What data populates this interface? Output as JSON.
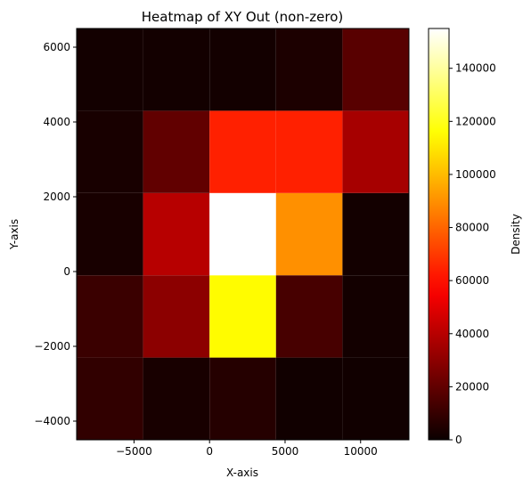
{
  "chart_data": {
    "type": "heatmap",
    "title": "Heatmap of XY Out (non-zero)",
    "xlabel": "X-axis",
    "ylabel": "Y-axis",
    "colorbar_label": "Density",
    "colormap": "hot",
    "xlim": [
      -8800,
      13200
    ],
    "ylim": [
      -4500,
      6500
    ],
    "x_edges": [
      -8800,
      -4400,
      0,
      4400,
      8800,
      13200
    ],
    "y_edges": [
      -4500,
      -2300,
      -100,
      2100,
      4300,
      6500
    ],
    "x_ticks": [
      -5000,
      0,
      5000,
      10000
    ],
    "x_tick_labels": [
      "−5000",
      "0",
      "5000",
      "10000"
    ],
    "y_ticks": [
      -4000,
      -2000,
      0,
      2000,
      4000,
      6000
    ],
    "y_tick_labels": [
      "−4000",
      "−2000",
      "0",
      "2000",
      "4000",
      "6000"
    ],
    "colorbar_range": [
      0,
      155000
    ],
    "colorbar_ticks": [
      0,
      20000,
      40000,
      60000,
      80000,
      100000,
      120000,
      140000
    ],
    "colorbar_tick_labels": [
      "0",
      "20000",
      "40000",
      "60000",
      "80000",
      "100000",
      "120000",
      "140000"
    ],
    "values": [
      [
        9000,
        3000,
        6000,
        1500,
        1500
      ],
      [
        11000,
        30000,
        115000,
        14000,
        2000
      ],
      [
        3000,
        40000,
        155000,
        90000,
        2000
      ],
      [
        3000,
        20000,
        64000,
        64000,
        36000
      ],
      [
        2000,
        2000,
        2000,
        4000,
        18000
      ]
    ]
  }
}
